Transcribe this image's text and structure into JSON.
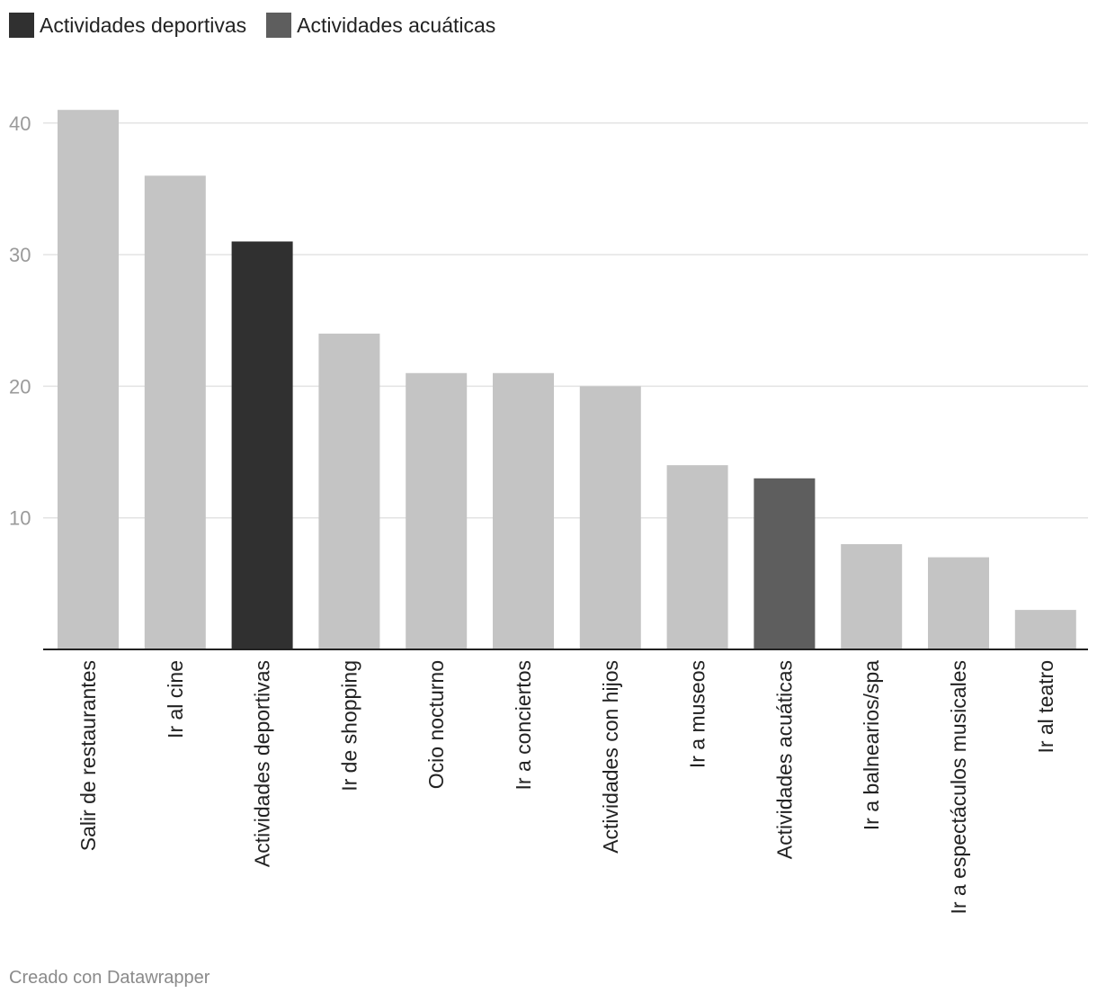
{
  "chart_data": {
    "type": "bar",
    "categories": [
      "Salir de restaurantes",
      "Ir al cine",
      "Actividades deportivas",
      "Ir de shopping",
      "Ocio nocturno",
      "Ir a conciertos",
      "Actividades con hijos",
      "Ir a museos",
      "Actividades acuáticas",
      "Ir a balnearios/spa",
      "Ir a espectáculos musicales",
      "Ir al teatro"
    ],
    "values": [
      41,
      36,
      31,
      24,
      21,
      21,
      20,
      14,
      13,
      8,
      7,
      3
    ],
    "bar_colors": [
      "#c4c4c4",
      "#c4c4c4",
      "#303030",
      "#c4c4c4",
      "#c4c4c4",
      "#c4c4c4",
      "#c4c4c4",
      "#c4c4c4",
      "#5e5e5e",
      "#c4c4c4",
      "#c4c4c4",
      "#c4c4c4"
    ],
    "yticks": [
      10,
      20,
      30,
      40
    ],
    "ylim": [
      0,
      42
    ],
    "grid": true,
    "legend": [
      {
        "label": "Actividades deportivas",
        "color": "#303030"
      },
      {
        "label": "Actividades acuáticas",
        "color": "#5e5e5e"
      }
    ]
  },
  "footer": {
    "credit": "Creado con Datawrapper"
  },
  "colors": {
    "grid": "#e3e3e3",
    "axis": "#222222",
    "tick_label": "#9a9a9a",
    "category_label": "#222222"
  }
}
